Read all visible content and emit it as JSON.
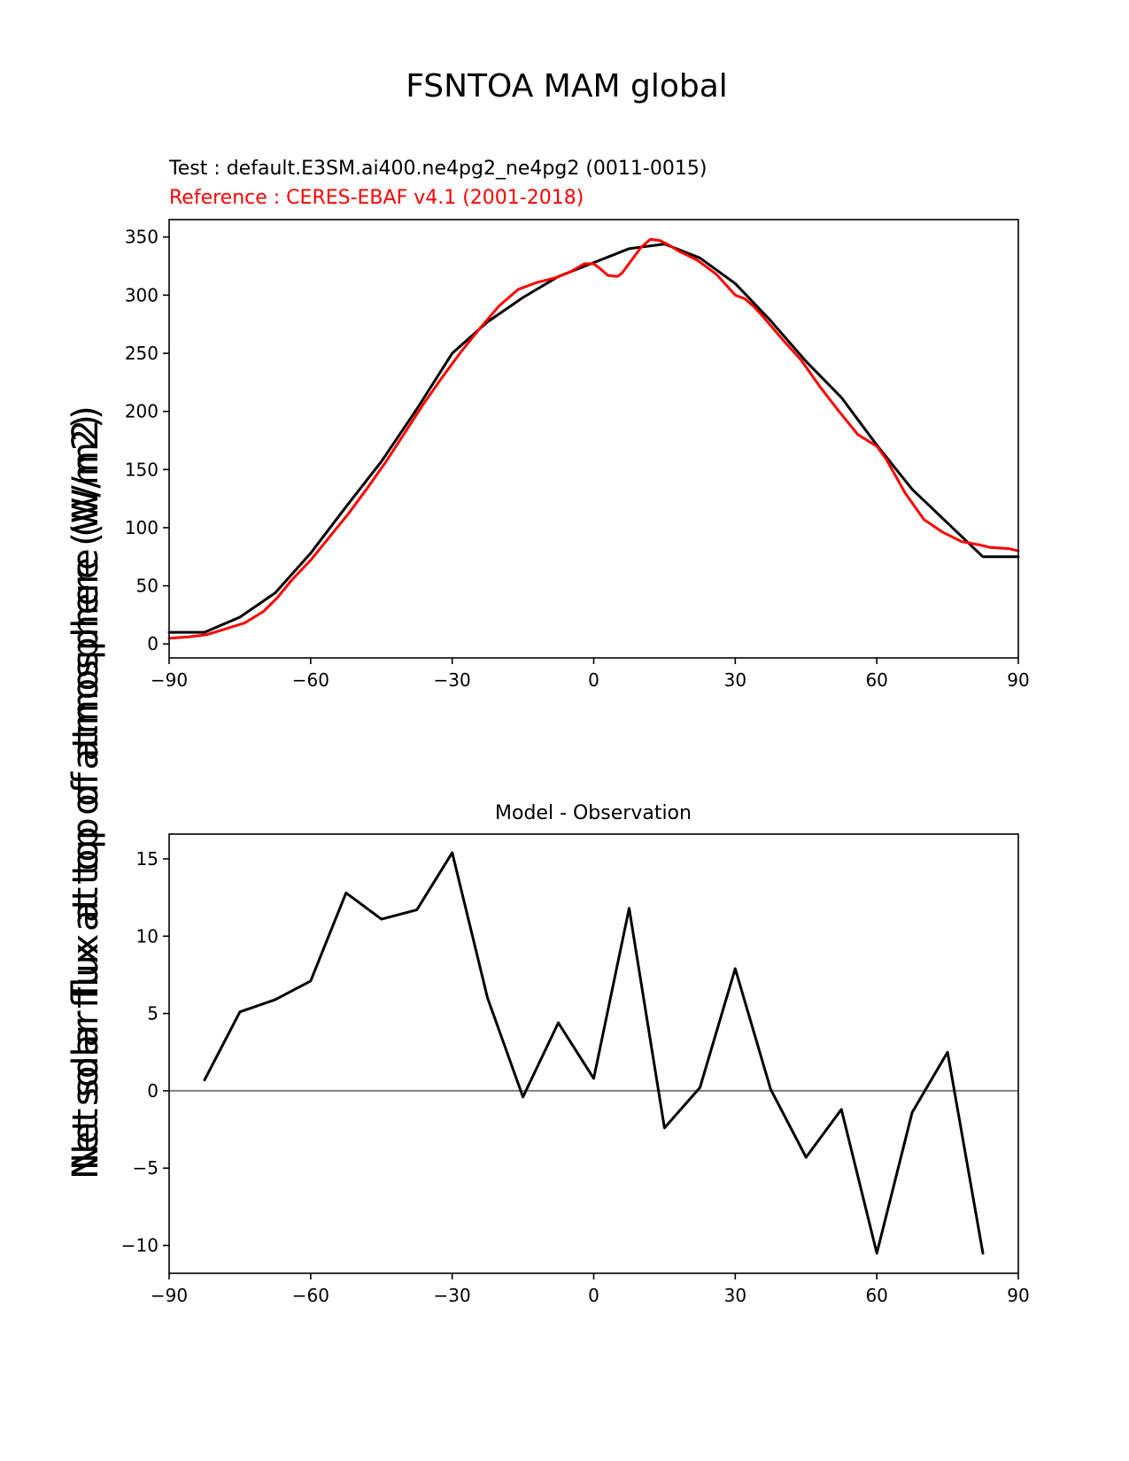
{
  "figure_title": "FSNTOA MAM global",
  "ylabel": "Net solar flux at top of atmosphere (W/m2)",
  "chart_data": [
    {
      "type": "line",
      "title": "",
      "test_label": "Test : default.E3SM.ai400.ne4pg2_ne4pg2 (0011-0015)",
      "reference_label": "Reference : CERES-EBAF v4.1 (2001-2018)",
      "xlim": [
        -90,
        90
      ],
      "ylim": [
        -12,
        365
      ],
      "xticks": [
        -90,
        -60,
        -30,
        0,
        30,
        60,
        90
      ],
      "xtick_labels": [
        "−90",
        "−60",
        "−30",
        "0",
        "30",
        "60",
        "90"
      ],
      "yticks": [
        0,
        50,
        100,
        150,
        200,
        250,
        300,
        350
      ],
      "ytick_labels": [
        "0",
        "50",
        "100",
        "150",
        "200",
        "250",
        "300",
        "350"
      ],
      "series": [
        {
          "name": "Test",
          "color": "#000000",
          "x": [
            -90,
            -82.5,
            -75,
            -67.5,
            -60,
            -52.5,
            -45,
            -37.5,
            -30,
            -22.5,
            -15,
            -7.5,
            0,
            7.5,
            15,
            22.5,
            30,
            37.5,
            45,
            52.5,
            60,
            67.5,
            75,
            82.5,
            90
          ],
          "y": [
            10,
            10,
            23,
            44,
            78,
            118,
            157,
            202,
            250,
            277,
            298,
            316,
            328,
            340,
            344,
            332,
            310,
            278,
            243,
            212,
            171,
            133,
            104,
            75,
            75
          ]
        },
        {
          "name": "Reference",
          "color": "#ff0000",
          "x": [
            -90,
            -86,
            -82,
            -78,
            -74,
            -70,
            -67,
            -64,
            -60,
            -56,
            -52,
            -48,
            -44,
            -40,
            -36,
            -32,
            -28,
            -24,
            -20,
            -16,
            -12,
            -8,
            -5,
            -2,
            0,
            1,
            3,
            5,
            6,
            8,
            10,
            12,
            14,
            16,
            18,
            20,
            22,
            24,
            26,
            28,
            30,
            32,
            34,
            36,
            40,
            44,
            48,
            52,
            56,
            60,
            62,
            66,
            70,
            74,
            78,
            82,
            84,
            88,
            90
          ],
          "y": [
            5,
            6,
            8,
            13,
            18,
            28,
            40,
            55,
            72,
            92,
            112,
            134,
            157,
            182,
            207,
            230,
            252,
            272,
            291,
            305,
            311,
            315,
            320,
            327,
            327,
            324,
            317,
            316,
            319,
            330,
            341,
            348,
            347,
            343,
            338,
            334,
            330,
            324,
            318,
            309,
            300,
            297,
            290,
            281,
            262,
            244,
            221,
            200,
            180,
            170,
            159,
            130,
            107,
            96,
            88,
            85,
            83,
            82,
            80
          ]
        }
      ]
    },
    {
      "type": "line",
      "title": "Model - Observation",
      "xlim": [
        -90,
        90
      ],
      "ylim": [
        -11.8,
        16.6
      ],
      "xticks": [
        -90,
        -60,
        -30,
        0,
        30,
        60,
        90
      ],
      "xtick_labels": [
        "−90",
        "−60",
        "−30",
        "0",
        "30",
        "60",
        "90"
      ],
      "yticks": [
        -10,
        -5,
        0,
        5,
        10,
        15
      ],
      "ytick_labels": [
        "−10",
        "−5",
        "0",
        "5",
        "10",
        "15"
      ],
      "zero_line_color": "#808080",
      "series": [
        {
          "color": "#000000",
          "x": [
            -82.5,
            -75,
            -67.5,
            -60,
            -52.5,
            -45,
            -37.5,
            -30,
            -22.5,
            -15,
            -7.5,
            0,
            7.5,
            15,
            22.5,
            30,
            37.5,
            45,
            52.5,
            60,
            67.5,
            75,
            82.5
          ],
          "y": [
            0.7,
            5.1,
            5.9,
            7.1,
            12.8,
            11.1,
            11.7,
            15.4,
            6.0,
            -0.4,
            4.4,
            0.8,
            11.8,
            -2.4,
            0.2,
            7.9,
            0.1,
            -4.3,
            -1.2,
            -10.5,
            -1.4,
            2.5,
            -10.5
          ]
        }
      ]
    }
  ]
}
